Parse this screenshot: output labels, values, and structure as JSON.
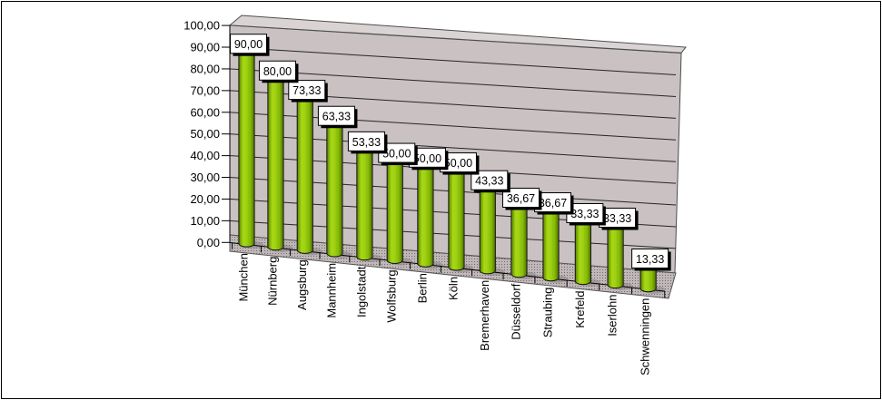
{
  "frame": {
    "background": "#ffffff",
    "border_color": "#000000"
  },
  "chart_data": {
    "type": "bar",
    "subtype": "3d-cylinder",
    "title": "",
    "xlabel": "",
    "ylabel": "",
    "legend": false,
    "grid": true,
    "ylim": [
      0,
      100
    ],
    "ytick_step": 10,
    "categories": [
      "München",
      "Nürnberg",
      "Augsburg",
      "Mannheim",
      "Ingolstadt",
      "Wolfsburg",
      "Berlin",
      "Köln",
      "Bremerhaven",
      "Düsseldorf",
      "Straubing",
      "Krefeld",
      "Iserlohn",
      "Schwenningen"
    ],
    "values": [
      90,
      80,
      73.33,
      63.33,
      53.33,
      50,
      50,
      50,
      43.33,
      36.67,
      36.67,
      33.33,
      33.33,
      13.33
    ],
    "data_labels": [
      "90,00",
      "80,00",
      "73,33",
      "63,33",
      "53,33",
      "50,00",
      "50,00",
      "50,00",
      "43,33",
      "36,67",
      "36,67",
      "33,33",
      "33,33",
      "13,33"
    ],
    "ytick_labels": [
      "0,00",
      "10,00",
      "20,00",
      "30,00",
      "40,00",
      "50,00",
      "60,00",
      "70,00",
      "80,00",
      "90,00",
      "100,00"
    ],
    "colors": {
      "bar_main": "#9ed112",
      "bar_light": "#a8d816",
      "bar_mid": "#85b906",
      "bar_dark": "#4f7100",
      "bar_edge": "#141414",
      "wall": "#c9c1c2",
      "wall_top": "#dad3d4",
      "wall_edge": "#4d4d4d",
      "floor_base": "#bfb7b8",
      "floor_dot": "#716b6c",
      "bar_shadow": "#8b8485",
      "gridline": "#262626",
      "axis": "#000000",
      "label_bg": "#ffffff",
      "label_border": "#000000",
      "label_shadow": "#000000",
      "text": "#000000"
    }
  }
}
